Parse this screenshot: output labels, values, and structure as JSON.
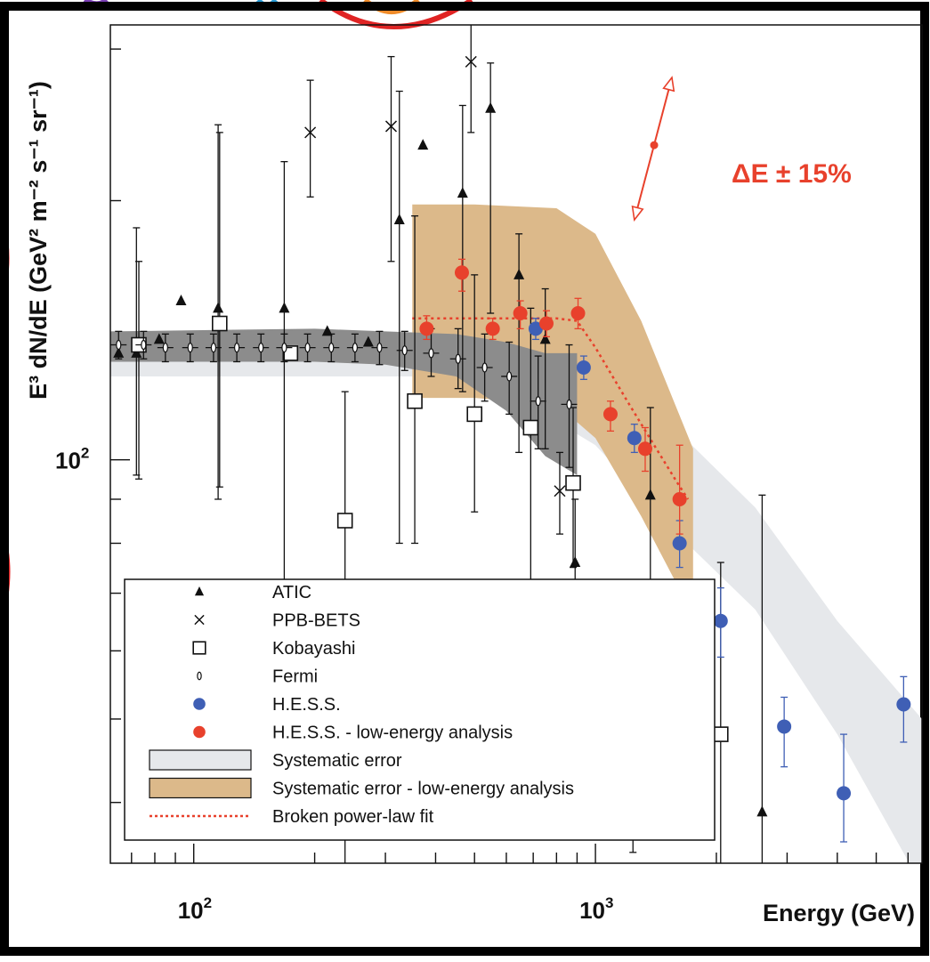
{
  "chart_data": {
    "type": "scatter",
    "title": "",
    "xlabel": "Energy  (GeV)",
    "ylabel": "E³ dN/dE (GeV² m⁻² s⁻¹ sr⁻¹)",
    "x_scale": "log",
    "y_scale": "log",
    "xlim": [
      62,
      6500
    ],
    "ylim": [
      34,
      320
    ],
    "x_tick_labels": [
      {
        "value": 100,
        "base": "10",
        "exp": "2"
      },
      {
        "value": 1000,
        "base": "10",
        "exp": "3"
      }
    ],
    "y_tick_labels": [
      {
        "value": 100,
        "base": "10",
        "exp": "2"
      }
    ],
    "annotation": {
      "text": "ΔE ± 15%",
      "color": "#e8412c",
      "center": [
        1400,
        232
      ],
      "low": [
        1250,
        190
      ],
      "high": [
        1550,
        278
      ]
    },
    "series": [
      {
        "name": "ATIC",
        "marker": "triangle",
        "color": "#111111",
        "points": [
          {
            "x": 65,
            "y": 133,
            "lo": 133,
            "hi": 133
          },
          {
            "x": 72,
            "y": 133,
            "lo": 96,
            "hi": 186
          },
          {
            "x": 82,
            "y": 138,
            "lo": 138,
            "hi": 138
          },
          {
            "x": 93,
            "y": 153,
            "lo": 153,
            "hi": 153
          },
          {
            "x": 115,
            "y": 150,
            "lo": 90,
            "hi": 245
          },
          {
            "x": 168,
            "y": 150,
            "lo": 62,
            "hi": 222
          },
          {
            "x": 215,
            "y": 141,
            "lo": 141,
            "hi": 141
          },
          {
            "x": 272,
            "y": 137,
            "lo": 137,
            "hi": 137
          },
          {
            "x": 325,
            "y": 190,
            "lo": 80,
            "hi": 268
          },
          {
            "x": 372,
            "y": 232,
            "lo": 232,
            "hi": 232
          },
          {
            "x": 467,
            "y": 204,
            "lo": 120,
            "hi": 258
          },
          {
            "x": 548,
            "y": 256,
            "lo": 148,
            "hi": 289
          },
          {
            "x": 645,
            "y": 164,
            "lo": 102,
            "hi": 183
          },
          {
            "x": 750,
            "y": 138,
            "lo": 103,
            "hi": 158
          },
          {
            "x": 890,
            "y": 76,
            "lo": 50,
            "hi": 90
          },
          {
            "x": 1370,
            "y": 91,
            "lo": 64,
            "hi": 115
          },
          {
            "x": 2600,
            "y": 39,
            "lo": 28,
            "hi": 91
          }
        ]
      },
      {
        "name": "PPB-BETS",
        "marker": "cross",
        "color": "#111111",
        "points": [
          {
            "x": 195,
            "y": 240,
            "lo": 202,
            "hi": 276
          },
          {
            "x": 310,
            "y": 244,
            "lo": 170,
            "hi": 294
          },
          {
            "x": 490,
            "y": 290,
            "lo": 240,
            "hi": 322
          },
          {
            "x": 815,
            "y": 92,
            "lo": 82,
            "hi": 102
          }
        ]
      },
      {
        "name": "Kobayashi",
        "marker": "square",
        "color": "#111111",
        "points": [
          {
            "x": 73,
            "y": 136,
            "lo": 95,
            "hi": 170
          },
          {
            "x": 116,
            "y": 144,
            "lo": 93,
            "hi": 240
          },
          {
            "x": 174,
            "y": 133,
            "lo": 133,
            "hi": 133
          },
          {
            "x": 238,
            "y": 85,
            "lo": 28,
            "hi": 120
          },
          {
            "x": 355,
            "y": 117,
            "lo": 80,
            "hi": 192
          },
          {
            "x": 500,
            "y": 113,
            "lo": 87,
            "hi": 164
          },
          {
            "x": 690,
            "y": 109,
            "lo": 69,
            "hi": 150
          },
          {
            "x": 880,
            "y": 94,
            "lo": 75,
            "hi": 115
          },
          {
            "x": 1240,
            "y": 56,
            "lo": 35,
            "hi": 72
          },
          {
            "x": 2050,
            "y": 48,
            "lo": 28,
            "hi": 76
          }
        ]
      },
      {
        "name": "Fermi",
        "marker": "diamond",
        "color": "#111111",
        "points": [
          {
            "x": 65,
            "y": 136,
            "lo": 131,
            "hi": 141
          },
          {
            "x": 75,
            "y": 136,
            "lo": 131,
            "hi": 141
          },
          {
            "x": 85,
            "y": 135,
            "lo": 130,
            "hi": 140
          },
          {
            "x": 98,
            "y": 135,
            "lo": 130,
            "hi": 140
          },
          {
            "x": 112,
            "y": 135,
            "lo": 130,
            "hi": 140
          },
          {
            "x": 128,
            "y": 135,
            "lo": 130,
            "hi": 140
          },
          {
            "x": 147,
            "y": 135,
            "lo": 130,
            "hi": 140
          },
          {
            "x": 168,
            "y": 135,
            "lo": 130,
            "hi": 140
          },
          {
            "x": 192,
            "y": 135,
            "lo": 130,
            "hi": 140
          },
          {
            "x": 220,
            "y": 135,
            "lo": 130,
            "hi": 140
          },
          {
            "x": 252,
            "y": 135,
            "lo": 130,
            "hi": 140
          },
          {
            "x": 290,
            "y": 135,
            "lo": 129,
            "hi": 141
          },
          {
            "x": 335,
            "y": 134,
            "lo": 127,
            "hi": 141
          },
          {
            "x": 390,
            "y": 133,
            "lo": 125,
            "hi": 142
          },
          {
            "x": 455,
            "y": 131,
            "lo": 121,
            "hi": 142
          },
          {
            "x": 530,
            "y": 128,
            "lo": 117,
            "hi": 140
          },
          {
            "x": 610,
            "y": 125,
            "lo": 113,
            "hi": 137
          },
          {
            "x": 720,
            "y": 117,
            "lo": 103,
            "hi": 132
          },
          {
            "x": 860,
            "y": 116,
            "lo": 98,
            "hi": 136
          }
        ]
      },
      {
        "name": "H.E.S.S.",
        "marker": "circle",
        "color": "#3f5fb5",
        "points": [
          {
            "x": 710,
            "y": 142,
            "lo": 138,
            "hi": 146
          },
          {
            "x": 935,
            "y": 128,
            "lo": 124,
            "hi": 132
          },
          {
            "x": 1250,
            "y": 106,
            "lo": 102,
            "hi": 110
          },
          {
            "x": 1620,
            "y": 80,
            "lo": 75,
            "hi": 85
          },
          {
            "x": 2050,
            "y": 65,
            "lo": 59,
            "hi": 71
          },
          {
            "x": 2950,
            "y": 49,
            "lo": 44,
            "hi": 53
          },
          {
            "x": 4150,
            "y": 41,
            "lo": 36,
            "hi": 48
          },
          {
            "x": 5850,
            "y": 52,
            "lo": 47,
            "hi": 56
          }
        ]
      },
      {
        "name": "H.E.S.S. - low-energy analysis",
        "marker": "circle",
        "color": "#e8412c",
        "points": [
          {
            "x": 380,
            "y": 142,
            "lo": 138,
            "hi": 147
          },
          {
            "x": 465,
            "y": 165,
            "lo": 157,
            "hi": 171
          },
          {
            "x": 555,
            "y": 142,
            "lo": 138,
            "hi": 146
          },
          {
            "x": 650,
            "y": 148,
            "lo": 142,
            "hi": 153
          },
          {
            "x": 755,
            "y": 144,
            "lo": 139,
            "hi": 149
          },
          {
            "x": 905,
            "y": 148,
            "lo": 142,
            "hi": 154
          },
          {
            "x": 1090,
            "y": 113,
            "lo": 108,
            "hi": 117
          },
          {
            "x": 1330,
            "y": 103,
            "lo": 97,
            "hi": 109
          },
          {
            "x": 1620,
            "y": 90,
            "lo": 82,
            "hi": 104
          }
        ]
      }
    ],
    "bands": [
      {
        "name": "Systematic error",
        "color": "#e6e8eb",
        "x": [
          62,
          350,
          700,
          1000,
          1600,
          2500,
          4000,
          6500
        ],
        "lower": [
          125,
          125,
          115,
          104,
          82,
          67,
          48,
          32
        ],
        "upper": [
          133,
          133,
          130,
          123,
          108,
          88,
          65,
          50
        ]
      },
      {
        "name": "Systematic error - low-energy analysis",
        "color": "#dcb98a",
        "x": [
          350,
          500,
          800,
          1000,
          1300,
          1750
        ],
        "lower": [
          118,
          118,
          116,
          106,
          86,
          66
        ],
        "upper": [
          198,
          198,
          196,
          183,
          145,
          103
        ]
      },
      {
        "name": "Fermi gray band",
        "color": "#8c8c8c",
        "x": [
          62,
          200,
          300,
          450,
          600,
          750,
          900
        ],
        "lower": [
          130,
          130,
          129,
          125,
          114,
          101,
          96
        ],
        "upper": [
          141,
          142,
          141,
          140,
          137,
          133,
          133
        ]
      }
    ],
    "fit": {
      "name": "Broken power-law fit",
      "color": "#e8412c",
      "style": "dotted",
      "x": [
        350,
        400,
        500,
        600,
        700,
        800,
        900,
        1000,
        1200,
        1400,
        1600,
        1700
      ],
      "y": [
        146,
        146,
        146,
        146,
        146,
        146,
        145,
        135,
        117,
        104,
        94,
        90
      ]
    },
    "legend_placement": "bottom-left",
    "legend": [
      {
        "label": "ATIC",
        "symbol": "triangle",
        "color": "#111111"
      },
      {
        "label": "PPB-BETS",
        "symbol": "cross",
        "color": "#111111"
      },
      {
        "label": "Kobayashi",
        "symbol": "square",
        "color": "#111111"
      },
      {
        "label": "Fermi",
        "symbol": "diamond",
        "color": "#111111"
      },
      {
        "label": "H.E.S.S.",
        "symbol": "circle",
        "color": "#3f5fb5"
      },
      {
        "label": "H.E.S.S. - low-energy analysis",
        "symbol": "circle",
        "color": "#e8412c"
      },
      {
        "label": "Systematic error",
        "symbol": "band",
        "color": "#e6e8eb"
      },
      {
        "label": "Systematic error - low-energy analysis",
        "symbol": "band",
        "color": "#dcb98a"
      },
      {
        "label": "Broken power-law fit",
        "symbol": "dotted-line",
        "color": "#e8412c"
      }
    ]
  }
}
